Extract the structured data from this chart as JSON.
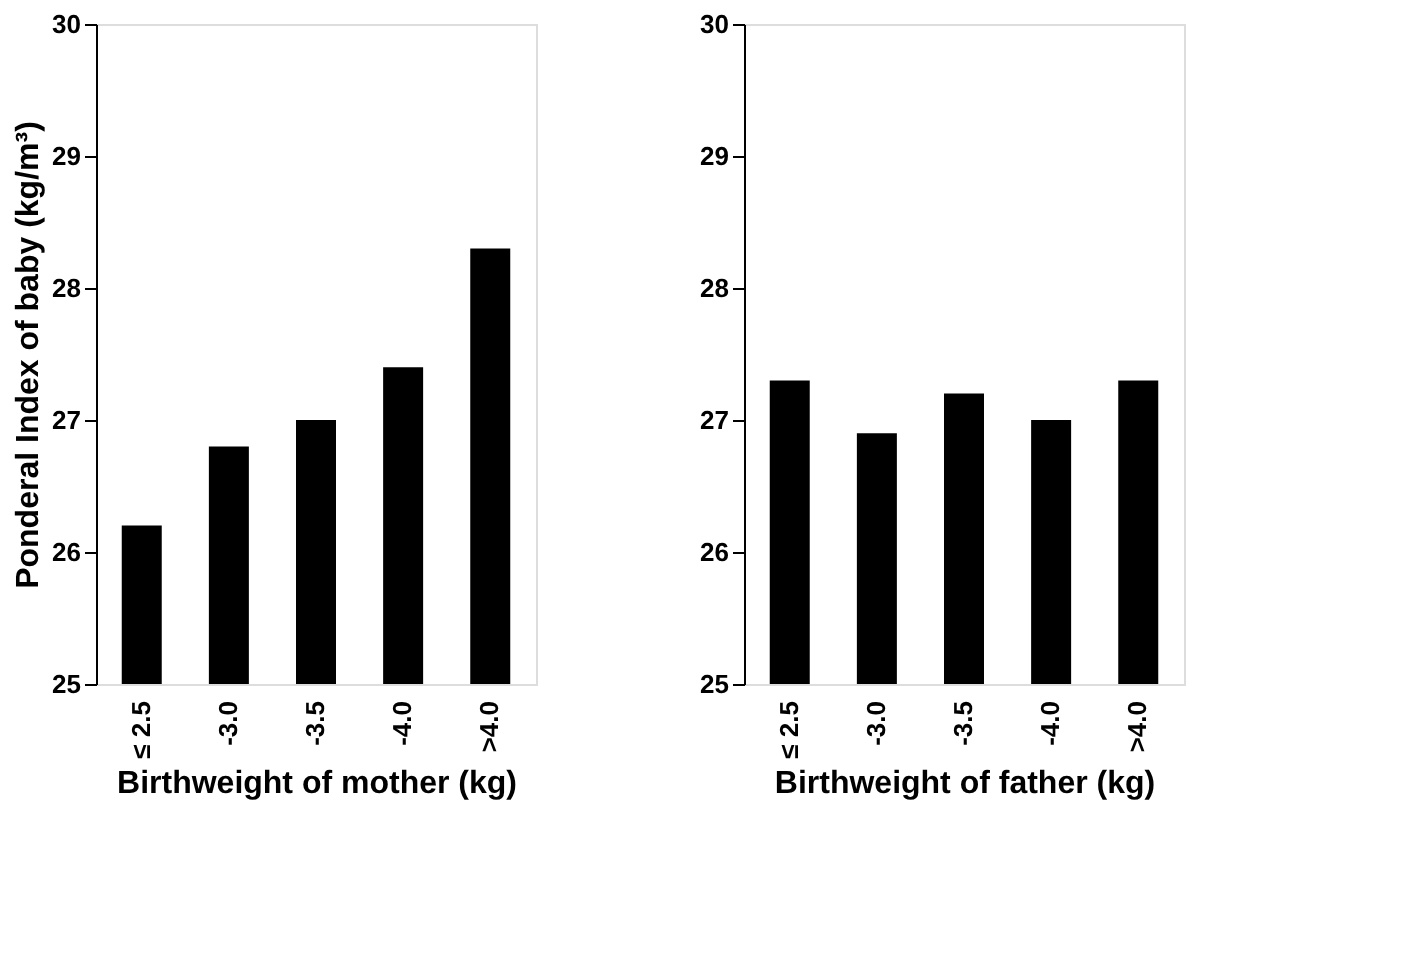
{
  "chart_data": [
    {
      "type": "bar",
      "categories": [
        "≤ 2.5",
        "-3.0",
        "-3.5",
        "-4.0",
        ">4.0"
      ],
      "values": [
        26.2,
        26.8,
        27.0,
        27.4,
        28.3
      ],
      "color": "#000000",
      "ylim": [
        25,
        30
      ],
      "yticks": [
        25,
        26,
        27,
        28,
        29,
        30
      ],
      "xlabel": "Birthweight of mother (kg)",
      "ylabel": "Ponderal Index of baby (kg/m³)",
      "grid": false
    },
    {
      "type": "bar",
      "categories": [
        "≤ 2.5",
        "-3.0",
        "-3.5",
        "-4.0",
        ">4.0"
      ],
      "values": [
        27.3,
        26.9,
        27.2,
        27.0,
        27.3
      ],
      "color": "#000000",
      "ylim": [
        25,
        30
      ],
      "yticks": [
        25,
        26,
        27,
        28,
        29,
        30
      ],
      "xlabel": "Birthweight of father (kg)",
      "grid": false
    }
  ]
}
